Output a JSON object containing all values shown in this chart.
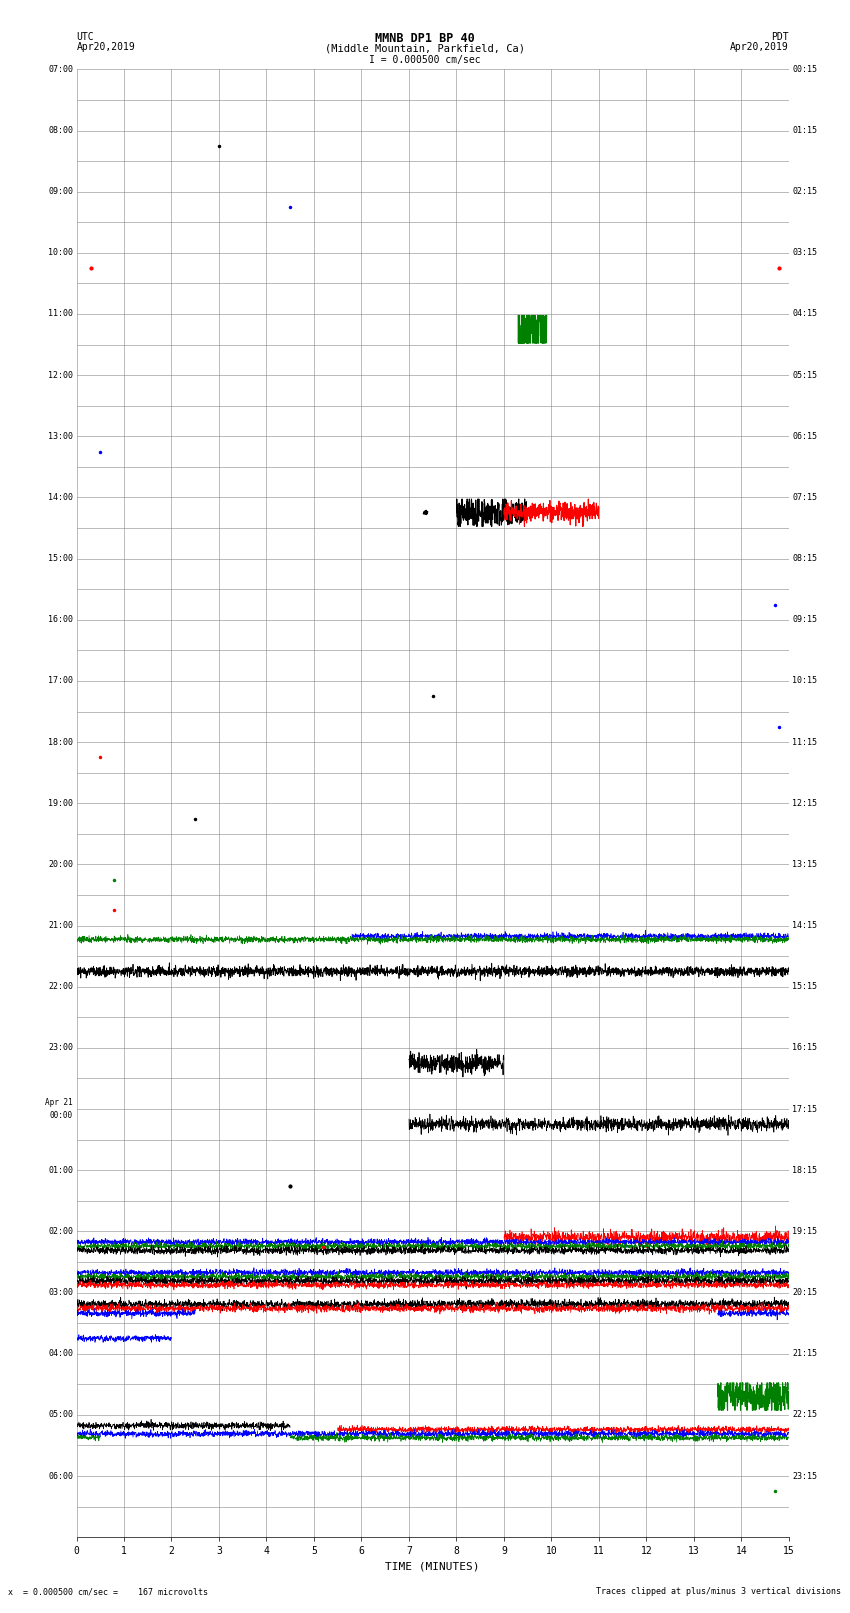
{
  "title_line1": "MMNB DP1 BP 40",
  "title_line2": "(Middle Mountain, Parkfield, Ca)",
  "title_line3": "I = 0.000500 cm/sec",
  "left_label_top": "UTC",
  "left_label_date": "Apr20,2019",
  "right_label_top": "PDT",
  "right_label_date": "Apr20,2019",
  "xlabel": "TIME (MINUTES)",
  "footer_left": "x  = 0.000500 cm/sec =    167 microvolts",
  "footer_right": "Traces clipped at plus/minus 3 vertical divisions",
  "background_color": "#ffffff",
  "grid_color": "#888888",
  "utc_labels": [
    "07:00",
    "",
    "08:00",
    "",
    "09:00",
    "",
    "10:00",
    "",
    "11:00",
    "",
    "12:00",
    "",
    "13:00",
    "",
    "14:00",
    "",
    "15:00",
    "",
    "16:00",
    "",
    "17:00",
    "",
    "18:00",
    "",
    "19:00",
    "",
    "20:00",
    "",
    "21:00",
    "",
    "22:00",
    "",
    "23:00",
    "",
    "Apr 21\n00:00",
    "",
    "01:00",
    "",
    "02:00",
    "",
    "03:00",
    "",
    "04:00",
    "",
    "05:00",
    "",
    "06:00",
    ""
  ],
  "pdt_labels": [
    "00:15",
    "",
    "01:15",
    "",
    "02:15",
    "",
    "03:15",
    "",
    "04:15",
    "",
    "05:15",
    "",
    "06:15",
    "",
    "07:15",
    "",
    "08:15",
    "",
    "09:15",
    "",
    "10:15",
    "",
    "11:15",
    "",
    "12:15",
    "",
    "13:15",
    "",
    "14:15",
    "",
    "15:15",
    "",
    "16:15",
    "",
    "17:15",
    "",
    "18:15",
    "",
    "19:15",
    "",
    "20:15",
    "",
    "21:15",
    "",
    "22:15",
    "",
    "23:15",
    ""
  ],
  "num_rows": 48,
  "xmin": 0,
  "xmax": 15
}
